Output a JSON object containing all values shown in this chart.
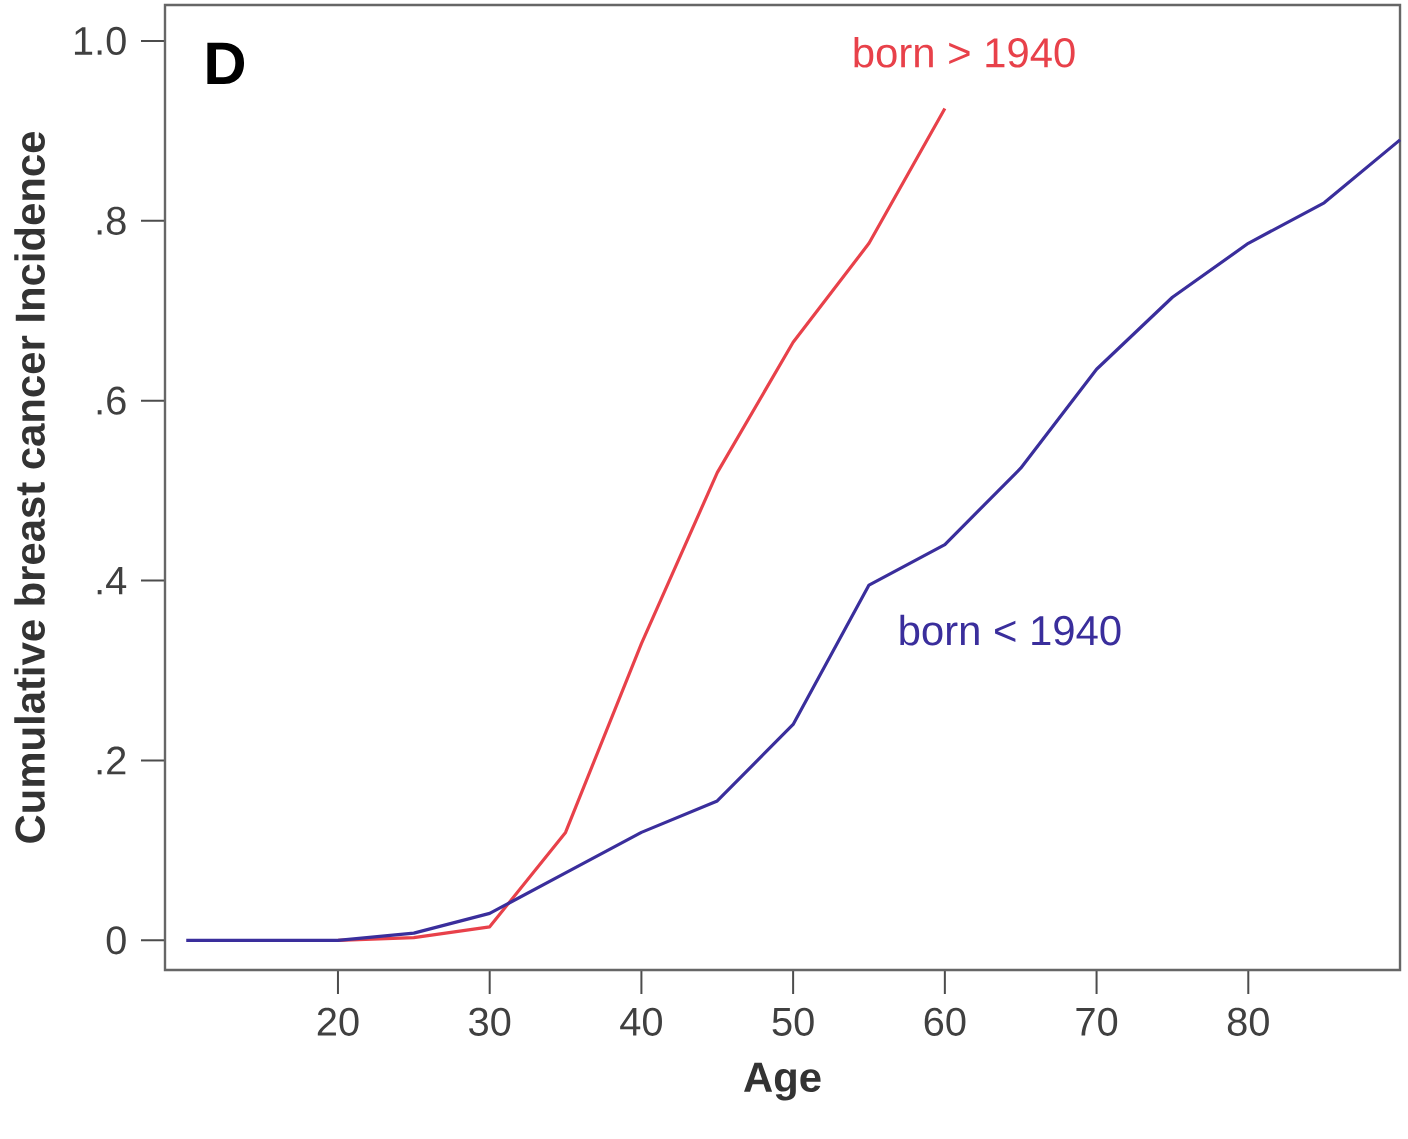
{
  "chart_data": {
    "type": "line",
    "title": "D",
    "xlabel": "Age",
    "ylabel": "Cumulative breast cancer Incidence",
    "xlim": [
      8.6,
      90
    ],
    "ylim": [
      -0.033,
      1.04
    ],
    "xticks": [
      20,
      30,
      40,
      50,
      60,
      70,
      80
    ],
    "yticks": [
      {
        "value": 0,
        "label": "0"
      },
      {
        "value": 0.2,
        "label": ".2"
      },
      {
        "value": 0.4,
        "label": ".4"
      },
      {
        "value": 0.6,
        "label": ".6"
      },
      {
        "value": 0.8,
        "label": ".8"
      },
      {
        "value": 1.0,
        "label": "1.0"
      }
    ],
    "grid": false,
    "legend": false,
    "marker": "none",
    "line_style": "solid",
    "series": [
      {
        "name": "born > 1940",
        "color": "#e8414a",
        "x": [
          20,
          25,
          30,
          35,
          40,
          45,
          50,
          55,
          60
        ],
        "values": [
          0,
          0.003,
          0.015,
          0.12,
          0.33,
          0.52,
          0.665,
          0.775,
          0.925
        ]
      },
      {
        "name": "born < 1940",
        "color": "#3a2e9c",
        "x": [
          10,
          20,
          25,
          30,
          35,
          40,
          45,
          50,
          55,
          60,
          65,
          70,
          75,
          80,
          85,
          90
        ],
        "values": [
          0,
          0,
          0.008,
          0.03,
          0.075,
          0.12,
          0.155,
          0.24,
          0.395,
          0.44,
          0.525,
          0.635,
          0.715,
          0.775,
          0.82,
          0.89
        ]
      }
    ]
  }
}
